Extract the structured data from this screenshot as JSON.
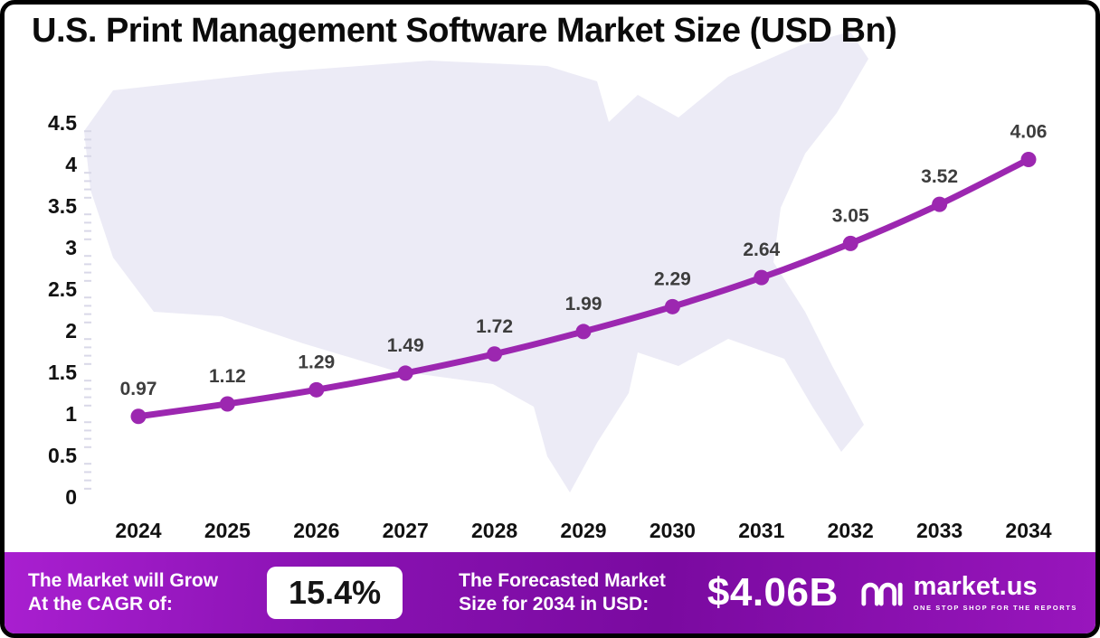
{
  "title": "U.S. Print Management Software Market Size (USD Bn)",
  "chart_data": {
    "type": "line",
    "title": "U.S. Print Management Software Market Size (USD Bn)",
    "x": [
      2024,
      2025,
      2026,
      2027,
      2028,
      2029,
      2030,
      2031,
      2032,
      2033,
      2034
    ],
    "series": [
      {
        "name": "U.S. Print Management Software Market Size (USD Bn)",
        "values": [
          0.97,
          1.12,
          1.29,
          1.49,
          1.72,
          1.99,
          2.29,
          2.64,
          3.05,
          3.52,
          4.06
        ]
      }
    ],
    "xlabel": "",
    "ylabel": "",
    "ylim": [
      0,
      4.5
    ],
    "ytick_step": 0.5,
    "grid": false,
    "legend_position": "none",
    "line_color": "#9c27b0",
    "marker_color": "#9c27b0",
    "data_label_color": "#3d3d3d"
  },
  "footer": {
    "cagr_text": "The Market will Grow\nAt the CAGR of:",
    "cagr_value": "15.4%",
    "forecast_text": "The Forecasted Market\nSize for 2034 in USD:",
    "forecast_value": "$4.06B",
    "brand": "market.us",
    "brand_tagline": "ONE STOP SHOP FOR THE REPORTS"
  }
}
